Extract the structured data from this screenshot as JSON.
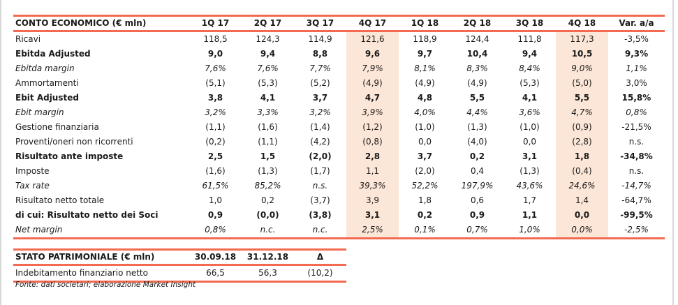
{
  "conto_economico": {
    "headers": [
      "CONTO ECONOMICO (€ mln)",
      "1Q 17",
      "2Q 17",
      "3Q 17",
      "4Q 17",
      "1Q 18",
      "2Q 18",
      "3Q 18",
      "4Q 18",
      "Var. a/a"
    ],
    "highlighted_columns": [
      "4Q 17",
      "4Q 18"
    ],
    "highlight_color": "#fce6d7",
    "rule_color": "#f26b50",
    "rows": [
      {
        "label": "Ricavi",
        "style": "normal",
        "values": [
          "118,5",
          "124,3",
          "114,9",
          "121,6",
          "118,9",
          "124,4",
          "111,8",
          "117,3",
          "-3,5%"
        ]
      },
      {
        "label": "Ebitda Adjusted",
        "style": "bold",
        "values": [
          "9,0",
          "9,4",
          "8,8",
          "9,6",
          "9,7",
          "10,4",
          "9,4",
          "10,5",
          "9,3%"
        ]
      },
      {
        "label": "Ebitda margin",
        "style": "italic",
        "values": [
          "7,6%",
          "7,6%",
          "7,7%",
          "7,9%",
          "8,1%",
          "8,3%",
          "8,4%",
          "9,0%",
          "1,1%"
        ]
      },
      {
        "label": "Ammortamenti",
        "style": "normal",
        "values": [
          "(5,1)",
          "(5,3)",
          "(5,2)",
          "(4,9)",
          "(4,9)",
          "(4,9)",
          "(5,3)",
          "(5,0)",
          "3,0%"
        ]
      },
      {
        "label": "Ebit Adjusted",
        "style": "bold",
        "values": [
          "3,8",
          "4,1",
          "3,7",
          "4,7",
          "4,8",
          "5,5",
          "4,1",
          "5,5",
          "15,8%"
        ]
      },
      {
        "label": "Ebit margin",
        "style": "italic",
        "values": [
          "3,2%",
          "3,3%",
          "3,2%",
          "3,9%",
          "4,0%",
          "4,4%",
          "3,6%",
          "4,7%",
          "0,8%"
        ]
      },
      {
        "label": "Gestione finanziaria",
        "style": "normal",
        "values": [
          "(1,1)",
          "(1,6)",
          "(1,4)",
          "(1,2)",
          "(1,0)",
          "(1,3)",
          "(1,0)",
          "(0,9)",
          "-21,5%"
        ]
      },
      {
        "label": "Proventi/oneri non ricorrenti",
        "style": "normal",
        "values": [
          "(0,2)",
          "(1,1)",
          "(4,2)",
          "(0,8)",
          "0,0",
          "(4,0)",
          "0,0",
          "(2,8)",
          "n.s."
        ]
      },
      {
        "label": "Risultato ante imposte",
        "style": "bold",
        "values": [
          "2,5",
          "1,5",
          "(2,0)",
          "2,8",
          "3,7",
          "0,2",
          "3,1",
          "1,8",
          "-34,8%"
        ]
      },
      {
        "label": "Imposte",
        "style": "normal",
        "values": [
          "(1,6)",
          "(1,3)",
          "(1,7)",
          "1,1",
          "(2,0)",
          "0,4",
          "(1,3)",
          "(0,4)",
          "n.s."
        ]
      },
      {
        "label": "Tax rate",
        "style": "italic",
        "values": [
          "61,5%",
          "85,2%",
          "n.s.",
          "39,3%",
          "52,2%",
          "197,9%",
          "43,6%",
          "24,6%",
          "-14,7%"
        ]
      },
      {
        "label": "Risultato netto totale",
        "style": "normal",
        "values": [
          "1,0",
          "0,2",
          "(3,7)",
          "3,9",
          "1,8",
          "0,6",
          "1,7",
          "1,4",
          "-64,7%"
        ]
      },
      {
        "label": "di cui: Risultato netto dei Soci",
        "style": "bold",
        "values": [
          "0,9",
          "(0,0)",
          "(3,8)",
          "3,1",
          "0,2",
          "0,9",
          "1,1",
          "0,0",
          "-99,5%"
        ]
      },
      {
        "label": "Net margin",
        "style": "italic",
        "values": [
          "0,8%",
          "n.c.",
          "n.c.",
          "2,5%",
          "0,1%",
          "0,7%",
          "1,0%",
          "0,0%",
          "-2,5%"
        ]
      }
    ]
  },
  "stato_patrimoniale": {
    "headers": [
      "STATO PATRIMONIALE (€ mln)",
      "30.09.18",
      "31.12.18",
      "Δ"
    ],
    "rows": [
      {
        "label": "Indebitamento finanziario netto",
        "style": "normal",
        "values": [
          "66,5",
          "56,3",
          "(10,2)"
        ]
      }
    ]
  },
  "source": "Fonte: dati societari; elaborazione Market Insight"
}
